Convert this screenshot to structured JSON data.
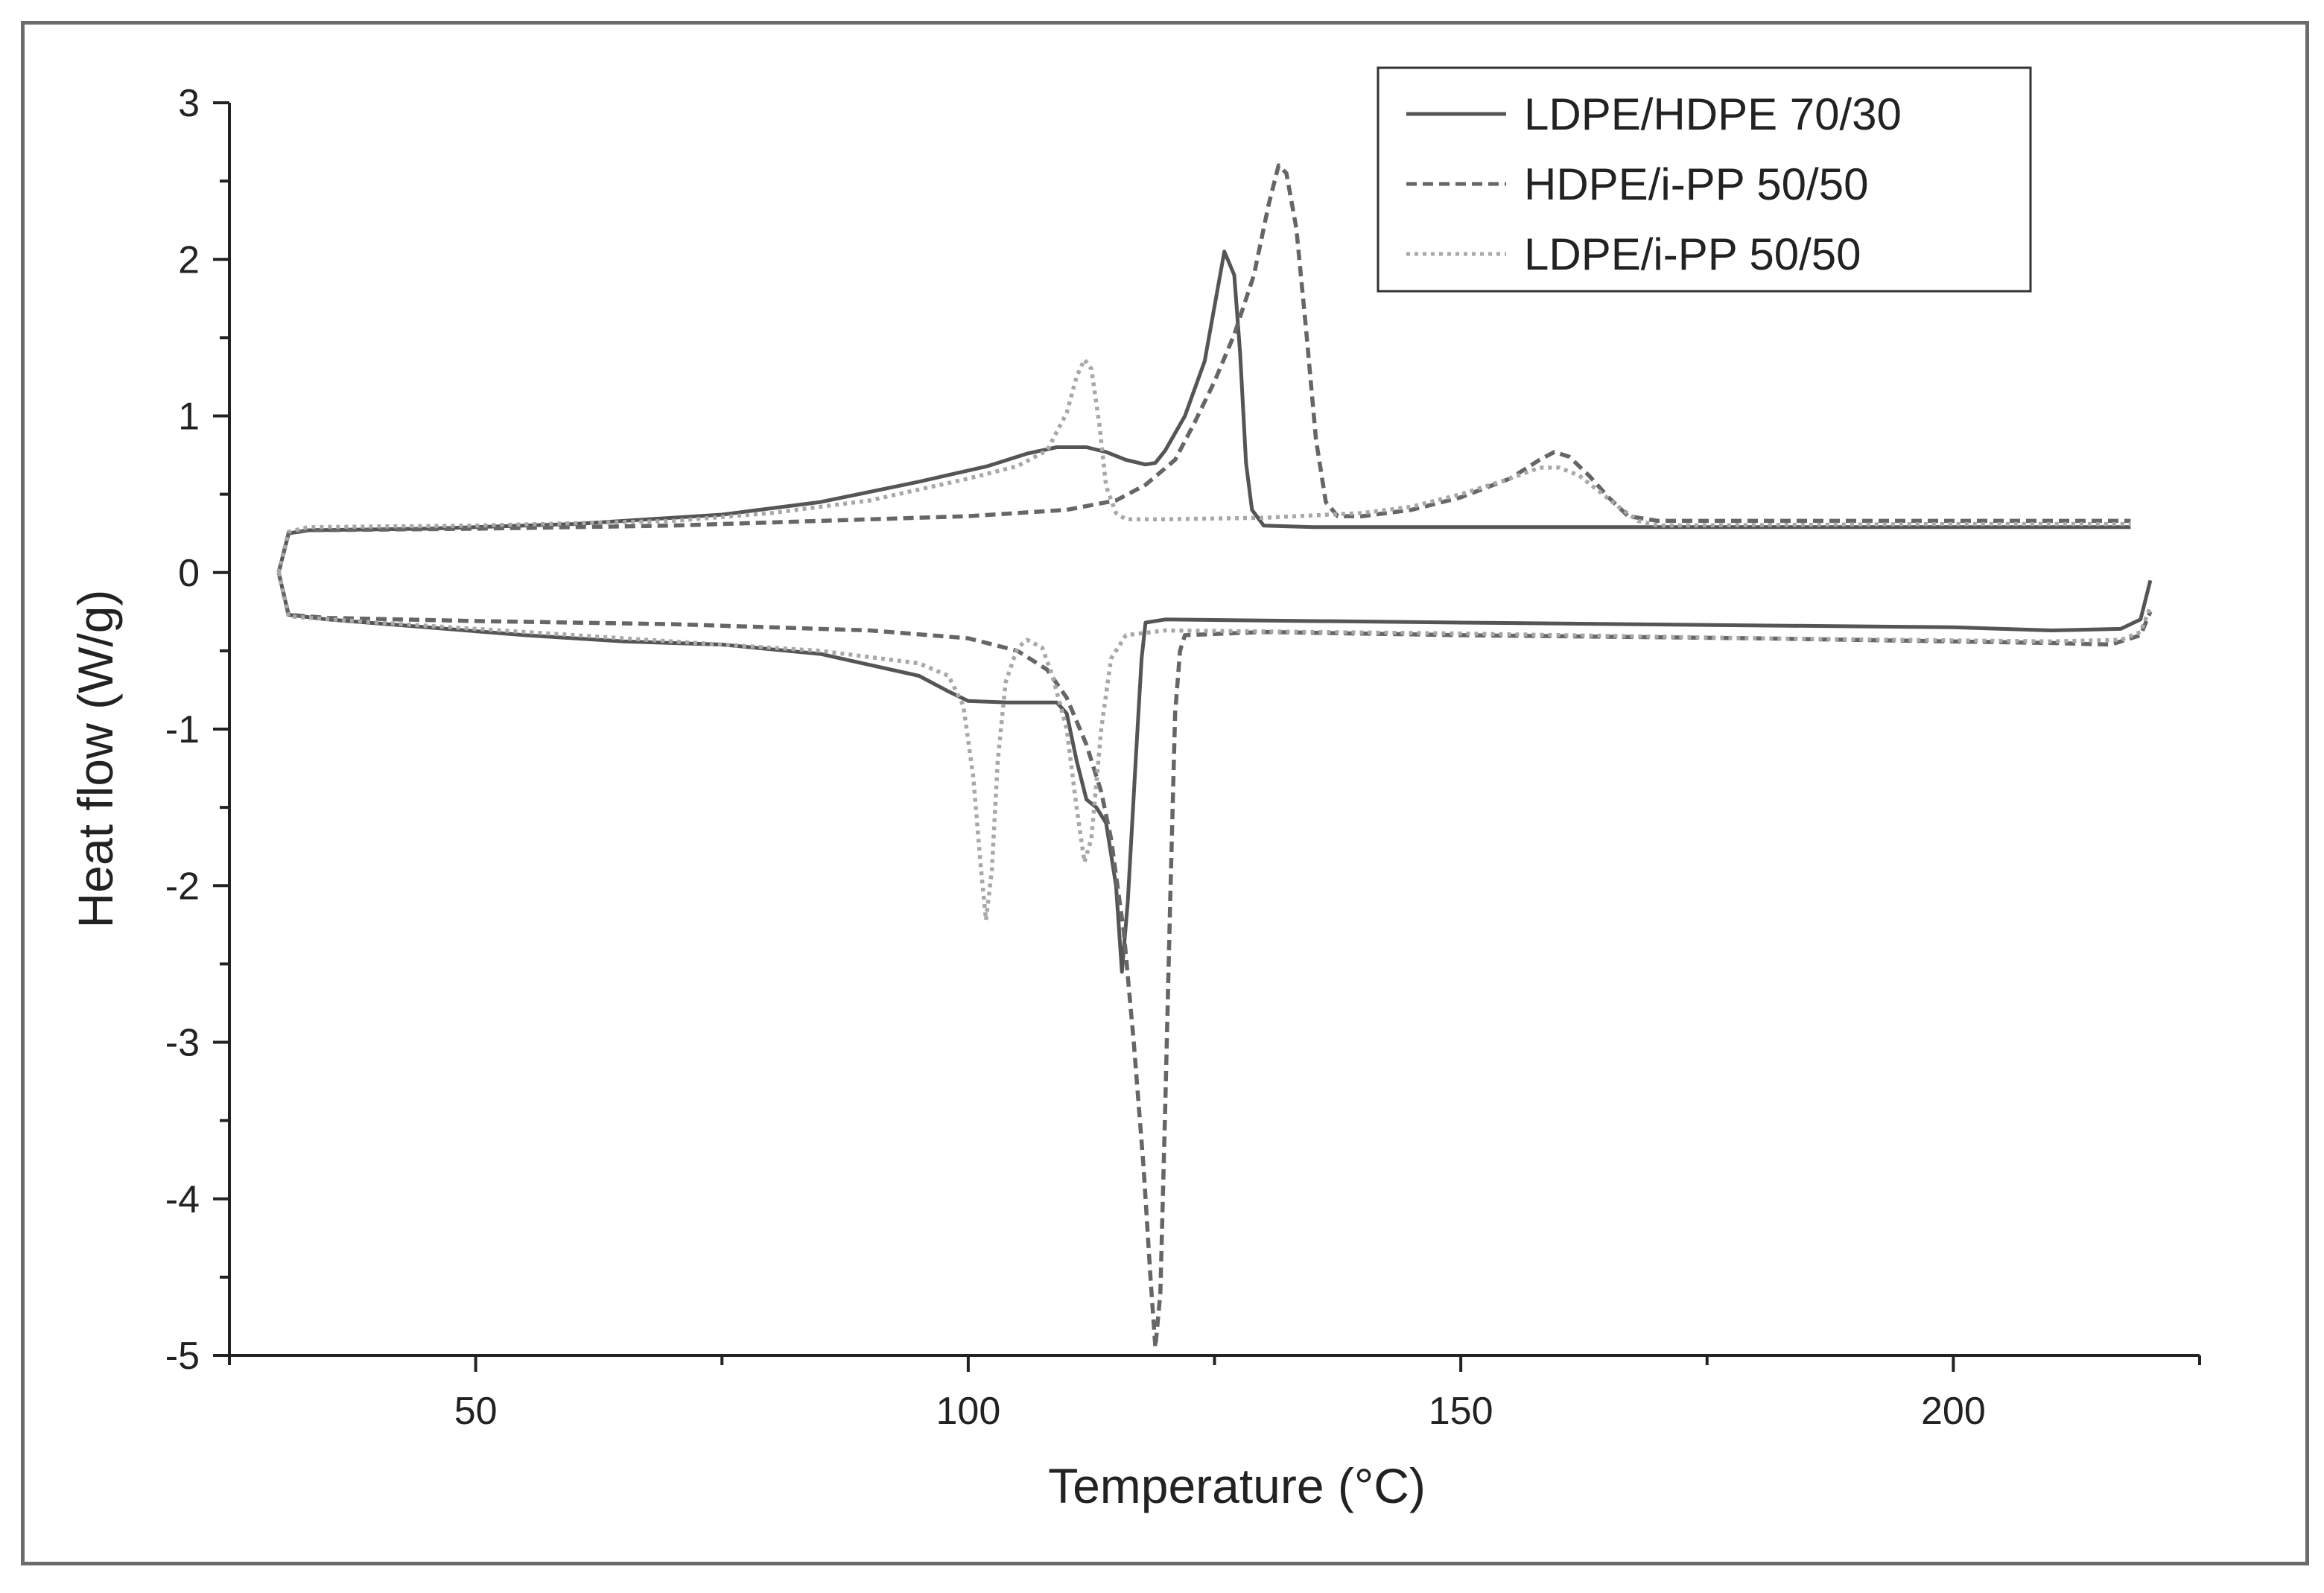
{
  "chart_data": {
    "type": "line",
    "xlabel": "Temperature (°C)",
    "ylabel": "Heat flow (W/g)",
    "xlim": [
      25,
      225
    ],
    "ylim": [
      -5,
      3
    ],
    "xticks": [
      50,
      100,
      150,
      200
    ],
    "yticks": [
      3,
      2,
      1,
      0,
      -1,
      -2,
      -3,
      -4,
      -5
    ],
    "legend_position": "top-right",
    "series": [
      {
        "name": "LDPE/HDPE 70/30",
        "style": "solid",
        "color": "#555555",
        "segments": [
          [
            [
              30,
              0.0
            ],
            [
              31,
              0.25
            ],
            [
              33,
              0.27
            ],
            [
              45,
              0.28
            ],
            [
              60,
              0.31
            ],
            [
              75,
              0.37
            ],
            [
              85,
              0.45
            ],
            [
              95,
              0.58
            ],
            [
              102,
              0.68
            ],
            [
              106,
              0.76
            ],
            [
              109,
              0.8
            ],
            [
              112,
              0.8
            ],
            [
              114,
              0.77
            ],
            [
              116,
              0.72
            ],
            [
              118,
              0.69
            ],
            [
              119,
              0.7
            ],
            [
              120,
              0.78
            ],
            [
              122,
              1.0
            ],
            [
              124,
              1.35
            ],
            [
              125,
              1.7
            ],
            [
              126,
              2.05
            ],
            [
              127,
              1.9
            ],
            [
              127.6,
              1.4
            ],
            [
              128.2,
              0.7
            ],
            [
              128.8,
              0.4
            ],
            [
              130,
              0.3
            ],
            [
              135,
              0.29
            ],
            [
              160,
              0.29
            ],
            [
              200,
              0.29
            ],
            [
              218,
              0.29
            ]
          ],
          [
            [
              30,
              0.0
            ],
            [
              31,
              -0.27
            ],
            [
              35,
              -0.3
            ],
            [
              45,
              -0.35
            ],
            [
              55,
              -0.4
            ],
            [
              65,
              -0.44
            ],
            [
              75,
              -0.46
            ],
            [
              85,
              -0.52
            ],
            [
              95,
              -0.66
            ],
            [
              98,
              -0.76
            ],
            [
              100,
              -0.82
            ],
            [
              104,
              -0.83
            ],
            [
              109,
              -0.83
            ],
            [
              110,
              -0.9
            ],
            [
              111,
              -1.2
            ],
            [
              112,
              -1.45
            ],
            [
              113,
              -1.5
            ],
            [
              114,
              -1.6
            ],
            [
              115,
              -2.0
            ],
            [
              115.6,
              -2.55
            ],
            [
              116.2,
              -2.1
            ],
            [
              117,
              -1.2
            ],
            [
              117.6,
              -0.55
            ],
            [
              118,
              -0.32
            ],
            [
              120,
              -0.3
            ],
            [
              150,
              -0.32
            ],
            [
              200,
              -0.35
            ],
            [
              210,
              -0.37
            ],
            [
              217,
              -0.36
            ],
            [
              219,
              -0.3
            ],
            [
              220,
              -0.05
            ]
          ]
        ]
      },
      {
        "name": "HDPE/i-PP 50/50",
        "style": "dashed",
        "color": "#666666",
        "segments": [
          [
            [
              30,
              0.0
            ],
            [
              31,
              0.25
            ],
            [
              33,
              0.27
            ],
            [
              50,
              0.28
            ],
            [
              70,
              0.3
            ],
            [
              90,
              0.34
            ],
            [
              100,
              0.36
            ],
            [
              110,
              0.4
            ],
            [
              115,
              0.46
            ],
            [
              118,
              0.56
            ],
            [
              121,
              0.72
            ],
            [
              123,
              0.96
            ],
            [
              125,
              1.22
            ],
            [
              127,
              1.52
            ],
            [
              129,
              1.9
            ],
            [
              130.5,
              2.35
            ],
            [
              131.5,
              2.6
            ],
            [
              132.3,
              2.55
            ],
            [
              133.3,
              2.2
            ],
            [
              134.3,
              1.55
            ],
            [
              135.3,
              0.85
            ],
            [
              136.3,
              0.45
            ],
            [
              137.5,
              0.36
            ],
            [
              140,
              0.36
            ],
            [
              145,
              0.4
            ],
            [
              150,
              0.48
            ],
            [
              155,
              0.6
            ],
            [
              158,
              0.72
            ],
            [
              159.5,
              0.77
            ],
            [
              161,
              0.74
            ],
            [
              163,
              0.62
            ],
            [
              165,
              0.48
            ],
            [
              167,
              0.36
            ],
            [
              170,
              0.33
            ],
            [
              200,
              0.33
            ],
            [
              218,
              0.33
            ]
          ],
          [
            [
              30,
              0.0
            ],
            [
              31,
              -0.27
            ],
            [
              35,
              -0.29
            ],
            [
              50,
              -0.31
            ],
            [
              70,
              -0.33
            ],
            [
              90,
              -0.37
            ],
            [
              100,
              -0.42
            ],
            [
              105,
              -0.5
            ],
            [
              108,
              -0.62
            ],
            [
              110,
              -0.8
            ],
            [
              112,
              -1.1
            ],
            [
              113.5,
              -1.4
            ],
            [
              114.5,
              -1.7
            ],
            [
              115.8,
              -2.3
            ],
            [
              116.8,
              -3.0
            ],
            [
              117.8,
              -3.8
            ],
            [
              118.5,
              -4.5
            ],
            [
              119,
              -4.95
            ],
            [
              119.5,
              -4.6
            ],
            [
              120,
              -3.4
            ],
            [
              120.5,
              -2.1
            ],
            [
              121,
              -0.9
            ],
            [
              121.5,
              -0.5
            ],
            [
              122,
              -0.4
            ],
            [
              130,
              -0.38
            ],
            [
              150,
              -0.4
            ],
            [
              180,
              -0.42
            ],
            [
              210,
              -0.45
            ],
            [
              216,
              -0.46
            ],
            [
              219,
              -0.4
            ],
            [
              220,
              -0.25
            ]
          ]
        ]
      },
      {
        "name": "LDPE/i-PP 50/50",
        "style": "dotted",
        "color": "#a8a8a8",
        "segments": [
          [
            [
              30,
              0.0
            ],
            [
              31,
              0.26
            ],
            [
              33,
              0.29
            ],
            [
              50,
              0.3
            ],
            [
              70,
              0.33
            ],
            [
              80,
              0.38
            ],
            [
              90,
              0.46
            ],
            [
              100,
              0.6
            ],
            [
              105,
              0.68
            ],
            [
              108,
              0.78
            ],
            [
              110,
              1.02
            ],
            [
              111,
              1.25
            ],
            [
              111.8,
              1.36
            ],
            [
              112.5,
              1.3
            ],
            [
              113.3,
              0.95
            ],
            [
              114,
              0.55
            ],
            [
              115,
              0.38
            ],
            [
              116,
              0.34
            ],
            [
              120,
              0.34
            ],
            [
              130,
              0.35
            ],
            [
              140,
              0.38
            ],
            [
              145,
              0.42
            ],
            [
              150,
              0.5
            ],
            [
              155,
              0.6
            ],
            [
              158,
              0.67
            ],
            [
              160,
              0.67
            ],
            [
              162,
              0.62
            ],
            [
              164,
              0.52
            ],
            [
              166,
              0.42
            ],
            [
              168,
              0.33
            ],
            [
              170,
              0.3
            ],
            [
              200,
              0.31
            ],
            [
              218,
              0.31
            ]
          ],
          [
            [
              30,
              0.0
            ],
            [
              31,
              -0.28
            ],
            [
              40,
              -0.32
            ],
            [
              55,
              -0.38
            ],
            [
              70,
              -0.44
            ],
            [
              85,
              -0.5
            ],
            [
              95,
              -0.58
            ],
            [
              98,
              -0.66
            ],
            [
              99.5,
              -0.85
            ],
            [
              100.5,
              -1.3
            ],
            [
              101.3,
              -1.9
            ],
            [
              101.8,
              -2.22
            ],
            [
              102.4,
              -1.9
            ],
            [
              103,
              -1.2
            ],
            [
              103.8,
              -0.7
            ],
            [
              105,
              -0.48
            ],
            [
              106,
              -0.43
            ],
            [
              107.5,
              -0.48
            ],
            [
              108.5,
              -0.65
            ],
            [
              110,
              -1.0
            ],
            [
              111,
              -1.5
            ],
            [
              111.8,
              -1.85
            ],
            [
              112.5,
              -1.7
            ],
            [
              113.5,
              -1.0
            ],
            [
              114.5,
              -0.55
            ],
            [
              116,
              -0.4
            ],
            [
              120,
              -0.37
            ],
            [
              150,
              -0.39
            ],
            [
              180,
              -0.42
            ],
            [
              210,
              -0.44
            ],
            [
              217,
              -0.43
            ],
            [
              219,
              -0.38
            ],
            [
              220,
              -0.22
            ]
          ]
        ]
      }
    ]
  }
}
